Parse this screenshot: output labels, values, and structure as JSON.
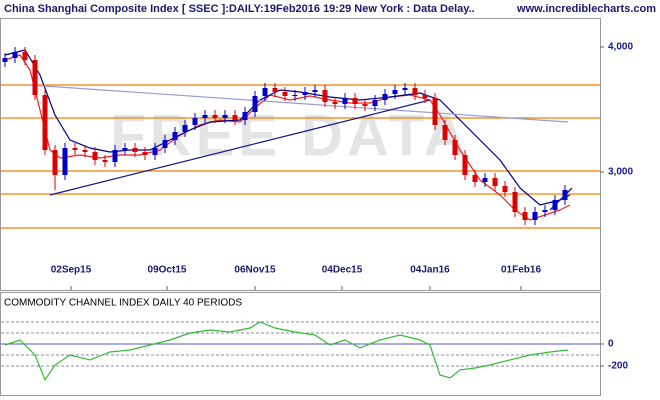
{
  "header": {
    "title": "China Shanghai Composite Index [ SSEC ]:DAILY:19Feb2016 19:29 New York : Data Delay..",
    "website": "www.incrediblecharts.com"
  },
  "watermark": "FREE DATA",
  "chart_data": [
    {
      "type": "candlestick",
      "xlim": [
        0,
        150
      ],
      "ylim": [
        2096,
        4232
      ],
      "yticks": [
        {
          "value": 4000,
          "label": "4,000"
        },
        {
          "value": 3000,
          "label": "3,000"
        }
      ],
      "xticks": [
        {
          "value": 17.75,
          "label": "02Sep15"
        },
        {
          "value": 41.75,
          "label": "09Oct15"
        },
        {
          "value": 63.75,
          "label": "06Nov15"
        },
        {
          "value": 85.5,
          "label": "04Dec15"
        },
        {
          "value": 107.5,
          "label": "04Jan16"
        },
        {
          "value": 130.25,
          "label": "01Feb16"
        }
      ],
      "up_color": "#0000cc",
      "down_color": "#dd0000",
      "x": [
        1.25,
        3.75,
        6.25,
        8.75,
        11.25,
        13.75,
        16.25,
        18.75,
        21.25,
        23.75,
        26.25,
        28.75,
        31.25,
        33.75,
        36.25,
        38.75,
        41.25,
        43.75,
        46.25,
        48.75,
        51.25,
        53.75,
        56.25,
        58.75,
        61.25,
        63.75,
        66.25,
        68.75,
        71.25,
        73.75,
        76.25,
        78.75,
        81.25,
        83.75,
        86.25,
        88.75,
        91.25,
        93.75,
        96.25,
        98.75,
        101.25,
        103.75,
        106.25,
        108.75,
        111.25,
        113.75,
        116.25,
        118.75,
        121.25,
        123.75,
        126.25,
        128.75,
        131.25,
        133.75,
        136.25,
        138.75,
        141.25
      ],
      "open": [
        3880,
        3912,
        3960,
        3896,
        3616,
        3176,
        2976,
        3192,
        3176,
        3160,
        3096,
        3080,
        3176,
        3192,
        3160,
        3136,
        3192,
        3256,
        3320,
        3376,
        3432,
        3456,
        3432,
        3456,
        3416,
        3480,
        3608,
        3672,
        3640,
        3608,
        3616,
        3640,
        3656,
        3560,
        3544,
        3592,
        3544,
        3528,
        3576,
        3624,
        3656,
        3672,
        3616,
        3592,
        3376,
        3256,
        3136,
        2976,
        2920,
        2952,
        2888,
        2840,
        2680,
        2616,
        2680,
        2696,
        2776
      ],
      "high": [
        3952,
        4000,
        4000,
        3936,
        3656,
        3216,
        3232,
        3232,
        3216,
        3200,
        3136,
        3216,
        3232,
        3232,
        3200,
        3232,
        3296,
        3360,
        3416,
        3472,
        3496,
        3496,
        3496,
        3496,
        3520,
        3648,
        3712,
        3712,
        3680,
        3656,
        3680,
        3696,
        3696,
        3600,
        3632,
        3632,
        3584,
        3616,
        3664,
        3696,
        3712,
        3712,
        3656,
        3632,
        3416,
        3296,
        3176,
        3016,
        2992,
        2992,
        2928,
        2880,
        2720,
        2720,
        2736,
        2816,
        2896
      ],
      "low": [
        3840,
        3872,
        3856,
        3576,
        3136,
        2856,
        2936,
        3136,
        3120,
        3056,
        3040,
        3040,
        3136,
        3120,
        3096,
        3096,
        3152,
        3216,
        3280,
        3336,
        3392,
        3392,
        3392,
        3376,
        3376,
        3440,
        3568,
        3600,
        3568,
        3568,
        3576,
        3600,
        3520,
        3504,
        3504,
        3504,
        3488,
        3488,
        3536,
        3584,
        3616,
        3576,
        3552,
        3336,
        3216,
        3096,
        2936,
        2880,
        2880,
        2848,
        2800,
        2640,
        2576,
        2576,
        2640,
        2656,
        2736
      ],
      "close": [
        3912,
        3960,
        3896,
        3616,
        3176,
        2976,
        3192,
        3176,
        3160,
        3096,
        3080,
        3176,
        3192,
        3160,
        3136,
        3192,
        3256,
        3320,
        3376,
        3432,
        3456,
        3432,
        3456,
        3416,
        3480,
        3608,
        3672,
        3640,
        3608,
        3616,
        3640,
        3656,
        3560,
        3544,
        3592,
        3544,
        3528,
        3576,
        3624,
        3656,
        3672,
        3616,
        3592,
        3376,
        3256,
        3136,
        2976,
        2920,
        2952,
        2888,
        2840,
        2680,
        2616,
        2680,
        2696,
        2776,
        2856
      ],
      "lines": [
        {
          "color": "#ee2222",
          "x": [
            1.25,
            5,
            7.5,
            10,
            12.5,
            15,
            20,
            25,
            30,
            35,
            40,
            45,
            50,
            55,
            60,
            63.75,
            67.5,
            72.5,
            77.5,
            82.5,
            87.5,
            92.5,
            97.5,
            102.5,
            107.5,
            110,
            115,
            120,
            125,
            128.75,
            132.5,
            136.25,
            140,
            142.5
          ],
          "values": [
            3896,
            3936,
            3816,
            3496,
            3176,
            3112,
            3136,
            3112,
            3136,
            3136,
            3176,
            3296,
            3376,
            3416,
            3400,
            3512,
            3616,
            3576,
            3608,
            3576,
            3552,
            3552,
            3600,
            3616,
            3576,
            3456,
            3176,
            2936,
            2816,
            2696,
            2616,
            2656,
            2696,
            2736
          ]
        },
        {
          "color": "#000088",
          "x": [
            1.25,
            6.25,
            10,
            13.75,
            17.5,
            22.5,
            27.5,
            32.5,
            37.5,
            42.5,
            47.5,
            52.5,
            60,
            65,
            70,
            75,
            82.5,
            90,
            97.5,
            105,
            110,
            115,
            120,
            125,
            130,
            135,
            140,
            142.5
          ],
          "values": [
            3936,
            3976,
            3776,
            3456,
            3256,
            3192,
            3160,
            3176,
            3176,
            3256,
            3336,
            3400,
            3416,
            3576,
            3656,
            3640,
            3600,
            3576,
            3600,
            3632,
            3576,
            3416,
            3256,
            3096,
            2872,
            2736,
            2776,
            2816
          ]
        },
        {
          "color": "#9a9ad8",
          "x": [
            7.5,
            142
          ],
          "values": [
            3696,
            3400
          ]
        }
      ],
      "levels": {
        "color": "#f08000",
        "values": [
          3696,
          3432,
          3008,
          2824,
          2552
        ]
      },
      "trendlines": [
        {
          "color": "#1a1a8a",
          "x": [
            12.5,
            107.5
          ],
          "values": [
            2816,
            3576
          ]
        },
        {
          "color": "#1a1a8a",
          "x": [
            137.5,
            143
          ],
          "values": [
            2696,
            2872
          ]
        }
      ]
    },
    {
      "type": "line",
      "title": "COMMODITY CHANNEL INDEX DAILY 40 PERIODS",
      "xlim": [
        0,
        150
      ],
      "ylim": [
        -373,
        400
      ],
      "yticks": [
        0,
        -200
      ],
      "levels": [
        200,
        100,
        0,
        -100,
        -200
      ],
      "level_color": "#8888aa",
      "zero_color": "#5555cc",
      "color": "#33bb33",
      "x": [
        1.25,
        5,
        8.75,
        11.25,
        13.75,
        17.5,
        22.5,
        27.5,
        32.5,
        37.5,
        42.5,
        47.5,
        52.5,
        57.5,
        62.5,
        65,
        68.75,
        73.75,
        78.75,
        82.5,
        86.25,
        90,
        95,
        100,
        105,
        107.5,
        110,
        112.5,
        115,
        118.75,
        122.5,
        127.5,
        132.5,
        137.5,
        142
      ],
      "values": [
        -9,
        36,
        -100,
        -327,
        -191,
        -100,
        -145,
        -73,
        -55,
        -9,
        36,
        100,
        127,
        109,
        145,
        200,
        145,
        109,
        82,
        -9,
        36,
        -36,
        36,
        82,
        36,
        -9,
        -282,
        -309,
        -236,
        -218,
        -191,
        -145,
        -100,
        -73,
        -55
      ]
    }
  ]
}
